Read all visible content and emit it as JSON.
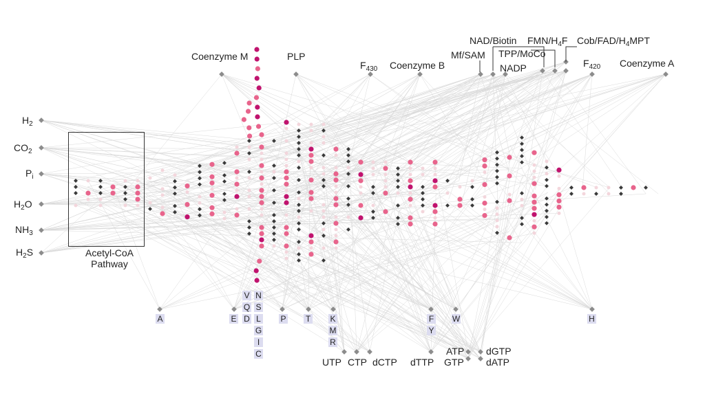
{
  "cofactors": {
    "coenzyme_m": "Coenzyme M",
    "plp": "PLP",
    "f430_base": "F",
    "f430_sub": "430",
    "coenzyme_b": "Coenzyme B",
    "nad_biotin": "NAD/Biotin",
    "mf_sam": "Mf/SAM",
    "fmn_h4f_base": "FMN/H",
    "fmn_h4f_sub": "4",
    "fmn_h4f_end": "F",
    "tpp_moco": "TPP/MoCo",
    "nadp": "NADP",
    "cob_base": "Cob/FAD/H",
    "cob_sub": "4",
    "cob_end": "MPT",
    "f420_base": "F",
    "f420_sub": "420",
    "coenzyme_a": "Coenzyme A"
  },
  "inorganics": {
    "h2_base": "H",
    "h2_sub": "2",
    "co2_base": "CO",
    "co2_sub": "2",
    "pi_base": "P",
    "pi_sub": "i",
    "h2o_base": "H",
    "h2o_sub": "2",
    "h2o_end": "O",
    "nh3_base": "NH",
    "nh3_sub": "3",
    "h2s_base": "H",
    "h2s_sub": "2",
    "h2s_end": "S"
  },
  "pathway_box": {
    "label": "Acetyl-CoA\nPathway"
  },
  "amino_acids": [
    "A",
    "E",
    "V",
    "Q",
    "D",
    "N",
    "S",
    "L",
    "G",
    "I",
    "C",
    "P",
    "T",
    "K",
    "M",
    "R",
    "F",
    "Y",
    "W",
    "H"
  ],
  "nucleotides": {
    "utp": "UTP",
    "ctp": "CTP",
    "dctp": "dCTP",
    "dttp": "dTTP",
    "atp": "ATP",
    "gtp": "GTP",
    "dgtp": "dGTP",
    "datp": "dATP"
  },
  "colors": {
    "diamond_dark": "#3a3a3a",
    "diamond_grey": "#8c8c8c",
    "node_pink": "#e8648c",
    "node_magenta": "#c0136e",
    "node_faint": "#f3d6dc",
    "edge": "#d9d9d9",
    "aa_box": "#dcdcf0"
  }
}
